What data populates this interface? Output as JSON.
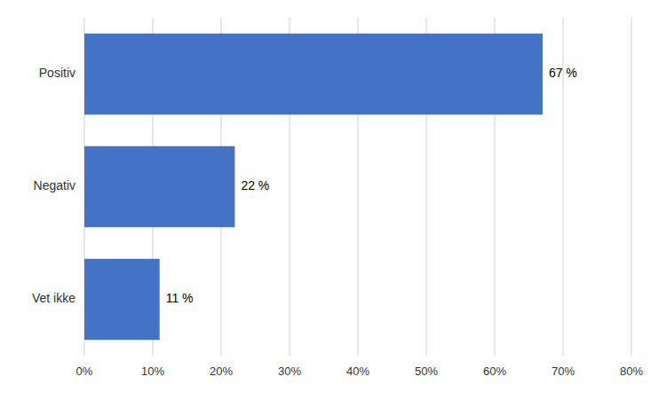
{
  "chart_data": {
    "type": "bar",
    "orientation": "horizontal",
    "categories": [
      "Vet ikke",
      "Negativ",
      "Positiv"
    ],
    "values": [
      11,
      22,
      67
    ],
    "value_labels": [
      "11 %",
      "22 %",
      "67 %"
    ],
    "data_labels": true,
    "color": "#4472C4",
    "xlim": [
      0,
      80
    ],
    "xticks": [
      {
        "value": 0,
        "label": "0%"
      },
      {
        "value": 10,
        "label": "10%"
      },
      {
        "value": 20,
        "label": "20%"
      },
      {
        "value": 30,
        "label": "30%"
      },
      {
        "value": 40,
        "label": "40%"
      },
      {
        "value": 50,
        "label": "50%"
      },
      {
        "value": 60,
        "label": "60%"
      },
      {
        "value": 70,
        "label": "70%"
      },
      {
        "value": 80,
        "label": "80%"
      }
    ],
    "grid": true
  }
}
